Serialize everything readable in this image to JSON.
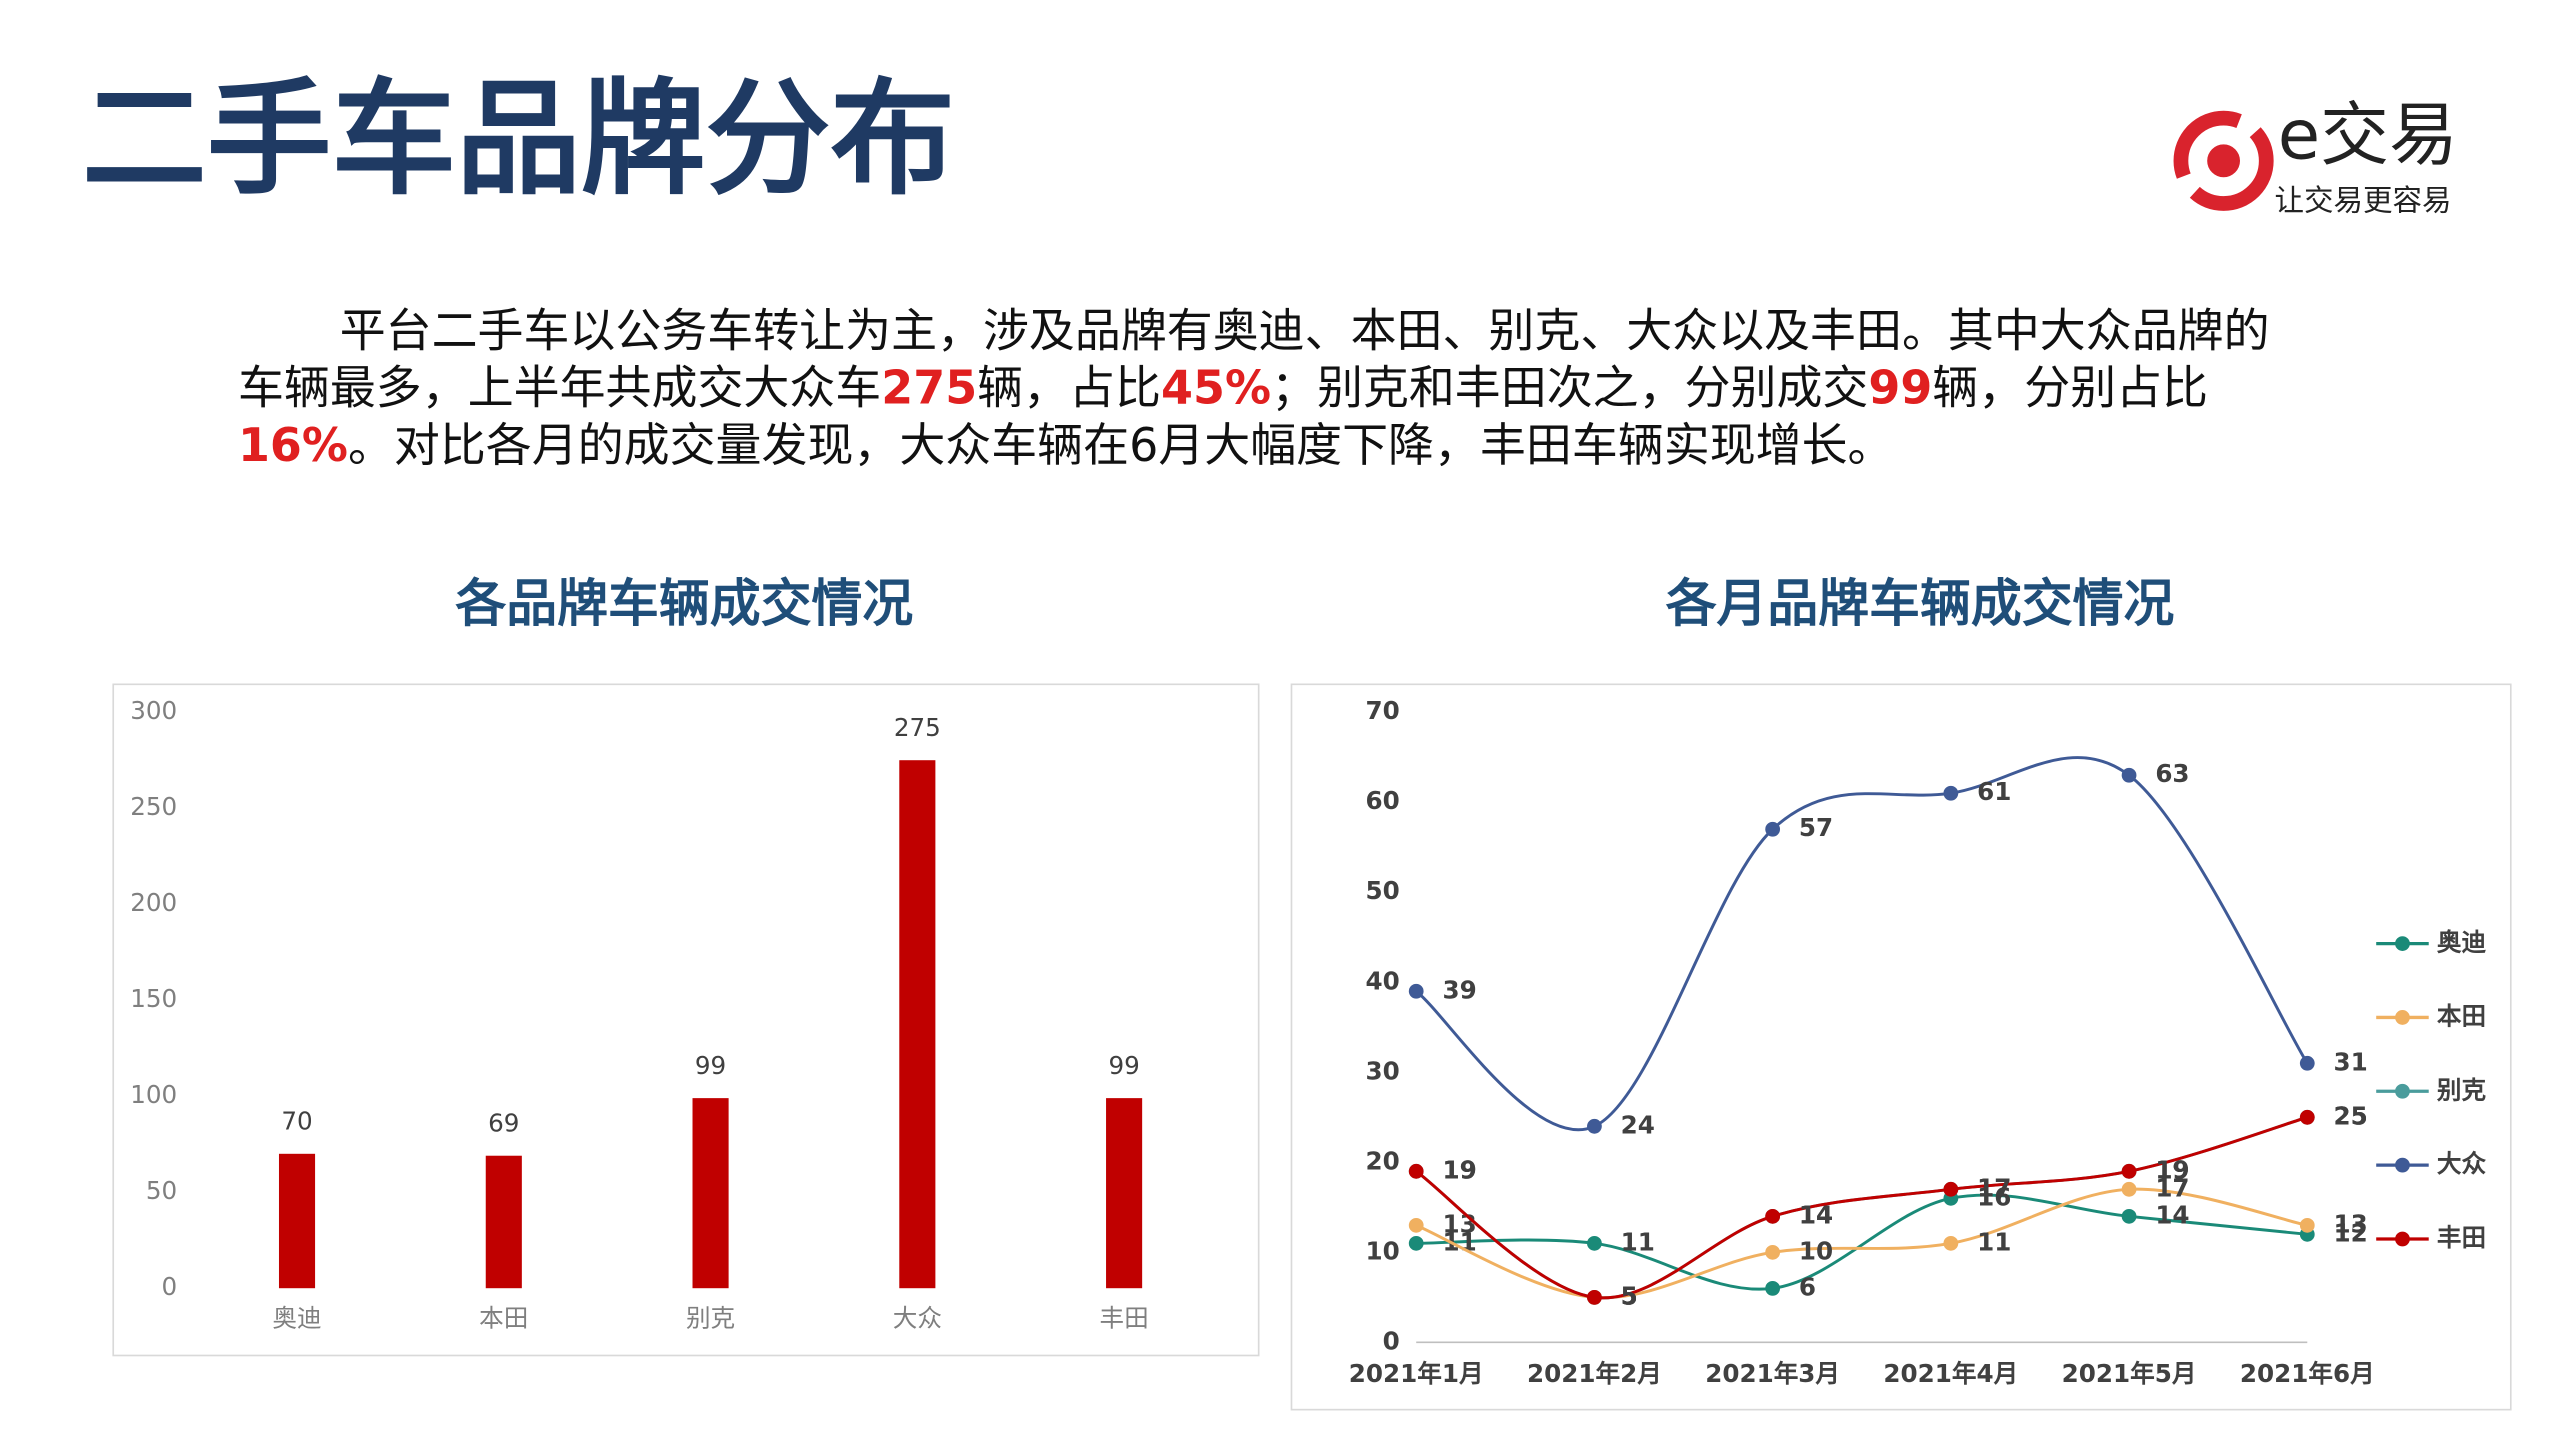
{
  "header": {
    "title": "二手车品牌分布",
    "logo_name": "e交易",
    "logo_slogan": "让交易更容易"
  },
  "paragraph": [
    {
      "text": "平台二手车以公务车转让为主，涉及品牌有奥迪、本田、别克、大众以及丰田。其中大众品牌的车辆最多，上半年共成交大众车"
    },
    {
      "text": "275",
      "highlight": true
    },
    {
      "text": "辆，占比"
    },
    {
      "text": "45%",
      "highlight": true
    },
    {
      "text": "；别克和丰田次之，分别成交"
    },
    {
      "text": "99",
      "highlight": true
    },
    {
      "text": "辆，分别占比"
    },
    {
      "text": "16%",
      "highlight": true
    },
    {
      "text": "。对比各月的成交量发现，大众车辆在6月大幅度下降，丰田车辆实现增长。"
    }
  ],
  "chart_data": [
    {
      "type": "bar",
      "title": "各品牌车辆成交情况",
      "categories": [
        "奥迪",
        "本田",
        "别克",
        "大众",
        "丰田"
      ],
      "values": [
        70,
        69,
        99,
        275,
        99
      ],
      "color": "#c00000",
      "ylim": [
        0,
        300
      ],
      "yticks": [
        0,
        50,
        100,
        150,
        200,
        250,
        300
      ],
      "grid": false
    },
    {
      "type": "line",
      "title": "各月品牌车辆成交情况",
      "categories": [
        "2021年1月",
        "2021年2月",
        "2021年3月",
        "2021年4月",
        "2021年5月",
        "2021年6月"
      ],
      "series": [
        {
          "name": "奥迪",
          "color": "#1a8a78",
          "values": [
            11,
            11,
            6,
            16,
            14,
            12
          ]
        },
        {
          "name": "本田",
          "color": "#f0b060",
          "values": [
            13,
            5,
            10,
            11,
            17,
            13
          ]
        },
        {
          "name": "别克",
          "color": "#4a9c9c",
          "values": [
            19,
            5,
            14,
            17,
            19,
            25
          ]
        },
        {
          "name": "大众",
          "color": "#3f5a96",
          "values": [
            39,
            24,
            57,
            61,
            63,
            31
          ]
        },
        {
          "name": "丰田",
          "color": "#c00000",
          "values": [
            19,
            5,
            14,
            17,
            19,
            25
          ]
        }
      ],
      "ylim": [
        0,
        70
      ],
      "yticks": [
        0,
        10,
        20,
        30,
        40,
        50,
        60,
        70
      ],
      "legend": "right",
      "smooth": true
    }
  ]
}
